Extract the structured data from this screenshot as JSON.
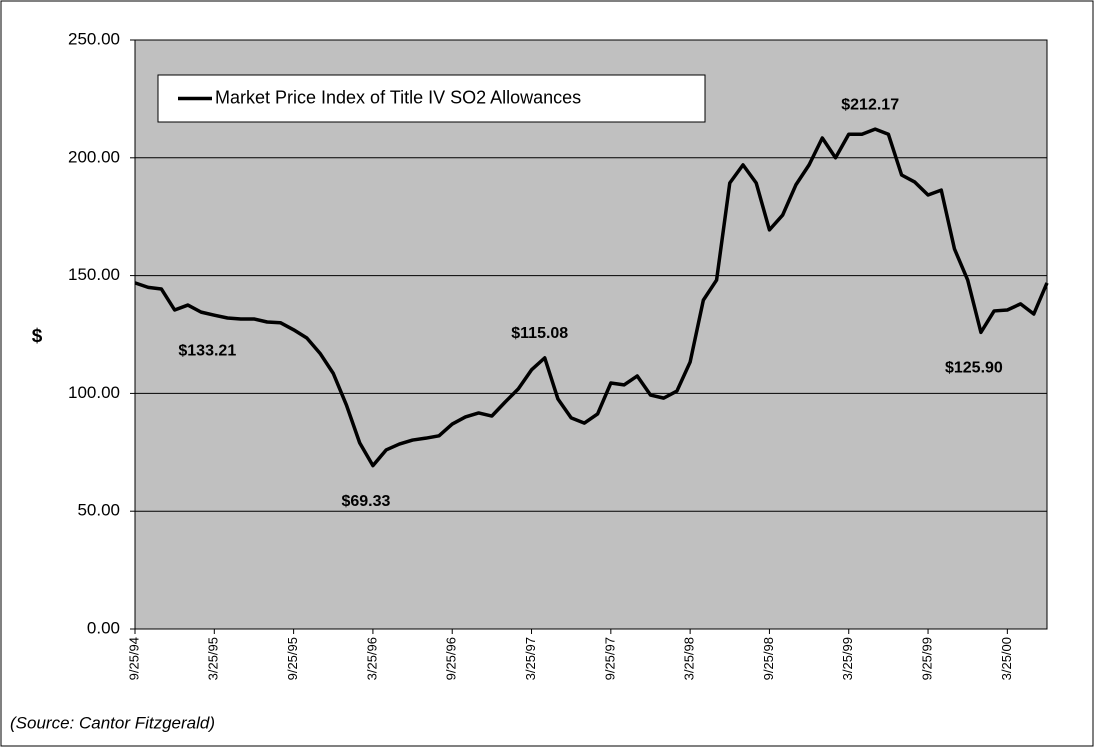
{
  "chart_data": {
    "type": "line",
    "y_label": "$",
    "source": "(Source: Cantor Fitzgerald)",
    "categories": [
      "9/25/94",
      null,
      null,
      null,
      null,
      null,
      "3/25/95",
      null,
      null,
      null,
      null,
      null,
      "9/25/95",
      null,
      null,
      null,
      null,
      null,
      "3/25/96",
      null,
      null,
      null,
      null,
      null,
      "9/25/96",
      null,
      null,
      null,
      null,
      null,
      "3/25/97",
      null,
      null,
      null,
      null,
      null,
      "9/25/97",
      null,
      null,
      null,
      null,
      null,
      "3/25/98",
      null,
      null,
      null,
      null,
      null,
      "9/25/98",
      null,
      null,
      null,
      null,
      null,
      "3/25/99",
      null,
      null,
      null,
      null,
      null,
      "9/25/99",
      null,
      null,
      null,
      null,
      null,
      "3/25/00",
      null,
      null,
      null
    ],
    "series": [
      {
        "name": "Market Price Index of Title IV SO2 Allowances",
        "color": "#000000",
        "values": [
          146.9,
          145,
          144.3,
          135.4,
          137.5,
          134.5,
          133.21,
          132,
          131.6,
          131.6,
          130.3,
          130,
          127,
          123.5,
          117,
          108.5,
          95,
          79,
          69.33,
          76,
          78.5,
          80.2,
          81,
          82,
          87,
          90,
          91.7,
          90.4,
          96.3,
          101.9,
          110,
          115.08,
          97.6,
          89.6,
          87.4,
          91.3,
          104.4,
          103.6,
          107.4,
          99.3,
          98,
          101,
          113.3,
          139.6,
          148.1,
          189.3,
          197,
          189.3,
          169.4,
          175.7,
          188.5,
          197,
          208.4,
          200,
          210,
          210,
          212.17,
          210,
          192.7,
          189.7,
          184.2,
          186.3,
          161.3,
          148.1,
          125.9,
          135,
          135.4,
          138,
          133.7,
          146.9
        ],
        "value_labels": [
          null,
          null,
          null,
          null,
          null,
          null,
          "$133.21",
          null,
          null,
          null,
          null,
          null,
          null,
          null,
          null,
          null,
          null,
          null,
          "$69.33",
          null,
          null,
          null,
          null,
          null,
          null,
          null,
          null,
          null,
          null,
          null,
          null,
          "$115.08",
          null,
          null,
          null,
          null,
          null,
          null,
          null,
          null,
          null,
          null,
          null,
          null,
          null,
          null,
          null,
          null,
          null,
          null,
          null,
          null,
          null,
          null,
          null,
          null,
          "$212.17",
          null,
          null,
          null,
          null,
          null,
          null,
          null,
          "$125.90",
          null,
          null,
          null,
          null,
          null
        ]
      }
    ],
    "ylim": [
      0,
      250
    ],
    "yticks": [
      {
        "value": 0,
        "label": "0.00"
      },
      {
        "value": 50,
        "label": "50.00"
      },
      {
        "value": 100,
        "label": "100.00"
      },
      {
        "value": 150,
        "label": "150.00"
      },
      {
        "value": 200,
        "label": "200.00"
      },
      {
        "value": 250,
        "label": "250.00"
      }
    ],
    "grid": true,
    "legend": "top-left"
  }
}
